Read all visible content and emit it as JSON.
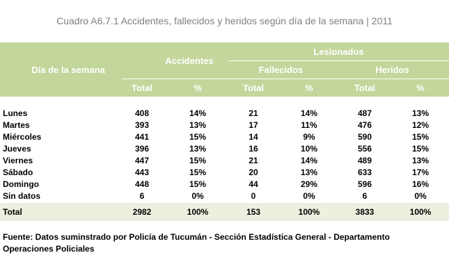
{
  "title": "Cuadro A6.7.1 Accidentes, fallecidos y heridos según día de la semana | 2011",
  "header": {
    "dia": "Día de la semana",
    "accidentes": "Accidentes",
    "lesionados": "Lesionados",
    "fallecidos": "Fallecidos",
    "heridos": "Heridos",
    "total": "Total",
    "pct": "%"
  },
  "rows": [
    {
      "dia": "Lunes",
      "acc_total": "408",
      "acc_pct": "14%",
      "fal_total": "21",
      "fal_pct": "14%",
      "her_total": "487",
      "her_pct": "13%"
    },
    {
      "dia": "Martes",
      "acc_total": "393",
      "acc_pct": "13%",
      "fal_total": "17",
      "fal_pct": "11%",
      "her_total": "476",
      "her_pct": "12%"
    },
    {
      "dia": "Miércoles",
      "acc_total": "441",
      "acc_pct": "15%",
      "fal_total": "14",
      "fal_pct": "9%",
      "her_total": "590",
      "her_pct": "15%"
    },
    {
      "dia": "Jueves",
      "acc_total": "396",
      "acc_pct": "13%",
      "fal_total": "16",
      "fal_pct": "10%",
      "her_total": "556",
      "her_pct": "15%"
    },
    {
      "dia": "Viernes",
      "acc_total": "447",
      "acc_pct": "15%",
      "fal_total": "21",
      "fal_pct": "14%",
      "her_total": "489",
      "her_pct": "13%"
    },
    {
      "dia": "Sábado",
      "acc_total": "443",
      "acc_pct": "15%",
      "fal_total": "20",
      "fal_pct": "13%",
      "her_total": "633",
      "her_pct": "17%"
    },
    {
      "dia": "Domingo",
      "acc_total": "448",
      "acc_pct": "15%",
      "fal_total": "44",
      "fal_pct": "29%",
      "her_total": "596",
      "her_pct": "16%"
    },
    {
      "dia": "Sin datos",
      "acc_total": "6",
      "acc_pct": "0%",
      "fal_total": "0",
      "fal_pct": "0%",
      "her_total": "6",
      "her_pct": "0%"
    }
  ],
  "total_row": {
    "dia": "Total",
    "acc_total": "2982",
    "acc_pct": "100%",
    "fal_total": "153",
    "fal_pct": "100%",
    "her_total": "3833",
    "her_pct": "100%"
  },
  "footnote": "Fuente: Datos suminstrado por Policía de Tucumán - Sección Estadística General - Departamento Operaciones Policiales",
  "colors": {
    "header_bg": "#c3d69b",
    "total_bg": "#ebf1de",
    "title": "#7f7f7f"
  }
}
